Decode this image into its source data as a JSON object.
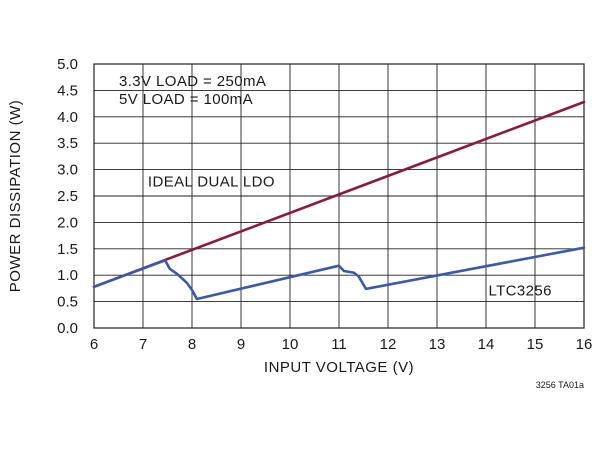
{
  "chart_data": {
    "type": "line",
    "xlabel": "INPUT VOLTAGE (V)",
    "ylabel": "POWER DISSIPATION (W)",
    "xlim": [
      6,
      16
    ],
    "ylim": [
      0,
      5
    ],
    "x_ticks": [
      6,
      7,
      8,
      9,
      10,
      11,
      12,
      13,
      14,
      15,
      16
    ],
    "y_ticks": [
      "0.0",
      "0.5",
      "1.0",
      "1.5",
      "2.0",
      "2.5",
      "3.0",
      "3.5",
      "4.0",
      "4.5",
      "5.0"
    ],
    "grid": true,
    "annotations": [
      "3.3V LOAD = 250mA",
      "5V LOAD = 100mA"
    ],
    "figure_ref": "3256 TA01a",
    "series": [
      {
        "name": "IDEAL DUAL LDO",
        "color": "#8b1a3c",
        "x": [
          6,
          16
        ],
        "y": [
          0.78,
          4.28
        ]
      },
      {
        "name": "LTC3256",
        "color": "#3a5aa8",
        "x": [
          6,
          7.45,
          7.55,
          7.7,
          7.9,
          8.0,
          8.1,
          11.0,
          11.1,
          11.3,
          11.4,
          11.55,
          16
        ],
        "y": [
          0.78,
          1.28,
          1.12,
          1.02,
          0.85,
          0.72,
          0.55,
          1.18,
          1.08,
          1.05,
          0.98,
          0.74,
          1.52
        ]
      }
    ]
  }
}
